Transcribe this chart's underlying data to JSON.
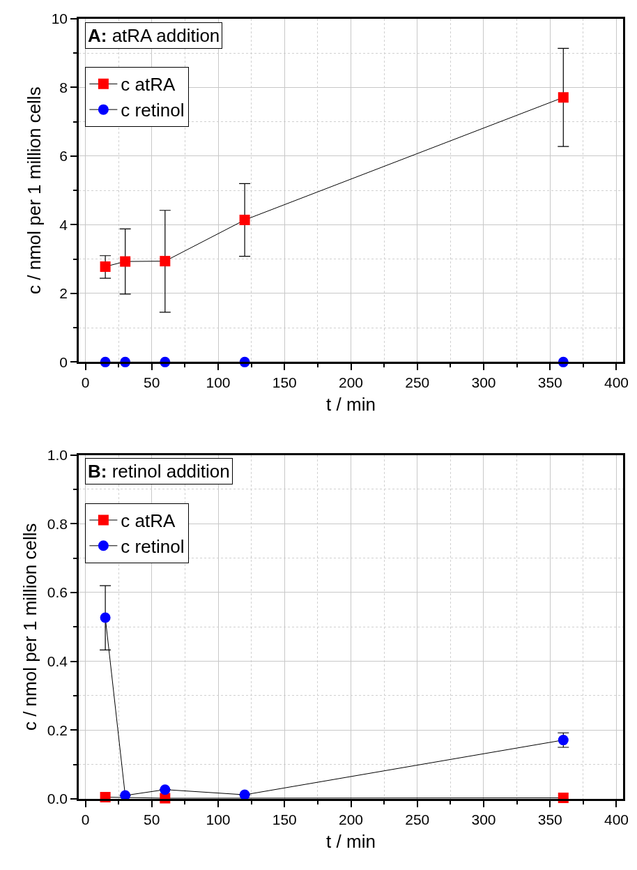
{
  "chart_data": [
    {
      "type": "line",
      "title": "A: atRA addition",
      "xlabel": "t / min",
      "ylabel": "c / nmol per 1 million cells",
      "x": [
        15,
        30,
        60,
        120,
        360
      ],
      "series": [
        {
          "name": "c atRA",
          "color": "#ff0000",
          "marker": "square",
          "values": [
            2.78,
            2.93,
            2.94,
            4.14,
            7.71
          ],
          "errors": [
            [
              2.44,
              3.1
            ],
            [
              1.98,
              3.88
            ],
            [
              1.45,
              4.42
            ],
            [
              3.08,
              5.2
            ],
            [
              6.28,
              9.14
            ]
          ]
        },
        {
          "name": "c retinol",
          "color": "#0000ff",
          "marker": "circle",
          "values": [
            0,
            0,
            0,
            0,
            0
          ]
        }
      ],
      "xlim": [
        -5,
        405
      ],
      "xticks": [
        0,
        50,
        100,
        150,
        200,
        250,
        300,
        350,
        400
      ],
      "ylim": [
        0,
        10
      ],
      "yticks": [
        0,
        2,
        4,
        6,
        8,
        10
      ],
      "grid": true,
      "legend": "top left",
      "line_style": "solid"
    },
    {
      "type": "line",
      "title": "B: retinol addition",
      "xlabel": "t / min",
      "ylabel": "c / nmol per 1 million cells",
      "x": [
        15,
        30,
        60,
        120,
        360
      ],
      "series": [
        {
          "name": "c atRA",
          "color": "#ff0000",
          "marker": "square",
          "values": [
            0.005,
            null,
            0.002,
            null,
            0.003
          ]
        },
        {
          "name": "c retinol",
          "color": "#0000ff",
          "marker": "circle",
          "values": [
            0.527,
            0.01,
            0.027,
            0.012,
            0.171
          ],
          "errors": [
            [
              0.433,
              0.62
            ],
            null,
            null,
            null,
            [
              0.15,
              0.192
            ]
          ]
        }
      ],
      "xlim": [
        -5,
        405
      ],
      "xticks": [
        0,
        50,
        100,
        150,
        200,
        250,
        300,
        350,
        400
      ],
      "ylim": [
        0,
        1
      ],
      "yticks": [
        {
          "value": 0,
          "label": "0.0"
        },
        {
          "value": 0.2,
          "label": "0.2"
        },
        {
          "value": 0.4,
          "label": "0.4"
        },
        {
          "value": 0.6,
          "label": "0.6"
        },
        {
          "value": 0.8,
          "label": "0.8"
        },
        {
          "value": 1,
          "label": "1.0"
        }
      ],
      "grid": true,
      "legend": "top left",
      "line_style": "solid"
    }
  ]
}
